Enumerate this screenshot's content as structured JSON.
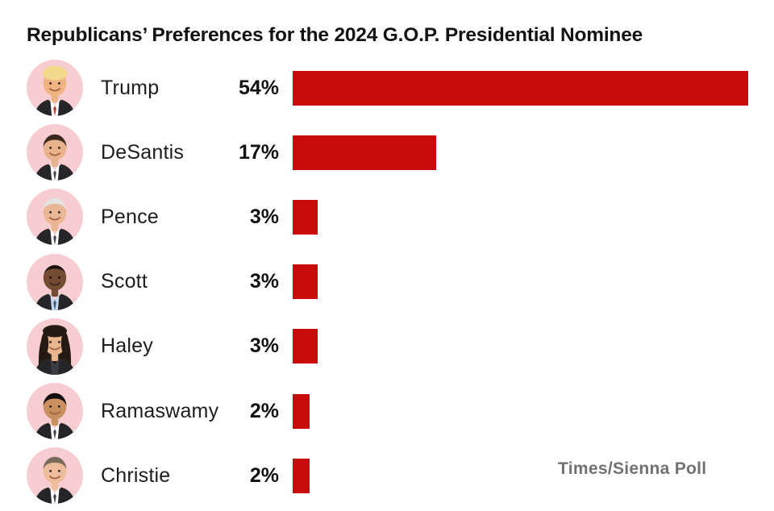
{
  "title": "Republicans’ Preferences for the 2024 G.O.P. Presidential Nominee",
  "attribution": "Times/Sienna Poll",
  "colors": {
    "background": "#ffffff",
    "bar": "#c80b0c",
    "avatar_bg": "#f7cdd1",
    "title": "#131313",
    "label": "#1d1d1d",
    "value": "#111111",
    "attribution": "#717171"
  },
  "chart_data": {
    "type": "bar",
    "orientation": "horizontal",
    "title": "Republicans’ Preferences for the 2024 G.O.P. Presidential Nominee",
    "categories": [
      "Trump",
      "DeSantis",
      "Pence",
      "Scott",
      "Haley",
      "Ramaswamy",
      "Christie"
    ],
    "values": [
      54,
      17,
      3,
      3,
      3,
      2,
      2
    ],
    "value_labels": [
      "54%",
      "17%",
      "3%",
      "3%",
      "3%",
      "2%",
      "2%"
    ],
    "unit": "%",
    "xlim": [
      0,
      54.5
    ],
    "grid": false,
    "legend": null,
    "source": "Times/Sienna Poll",
    "candidates": [
      {
        "name": "Trump",
        "avatar": {
          "icon": "trump-portrait-icon",
          "style": "swoop",
          "skin": "#f0b483",
          "hair": "#f3d98b",
          "shirt": "#ffffff",
          "suit": "#26262a",
          "tie": "#b03a36"
        }
      },
      {
        "name": "DeSantis",
        "avatar": {
          "icon": "desantis-portrait-icon",
          "style": "short",
          "skin": "#e7b38c",
          "hair": "#38281d",
          "shirt": "#ffffff",
          "suit": "#26262a",
          "tie": "#44444f"
        }
      },
      {
        "name": "Pence",
        "avatar": {
          "icon": "pence-portrait-icon",
          "style": "white",
          "skin": "#eab795",
          "hair": "#e4e4e2",
          "shirt": "#ffffff",
          "suit": "#26262a",
          "tie": "#44444f"
        }
      },
      {
        "name": "Scott",
        "avatar": {
          "icon": "scott-portrait-icon",
          "style": "bald",
          "skin": "#744c33",
          "hair": "#17110d",
          "shirt": "#c6d9ec",
          "suit": "#26262a",
          "tie": "#3e5a77"
        }
      },
      {
        "name": "Haley",
        "avatar": {
          "icon": "haley-portrait-icon",
          "style": "long",
          "skin": "#e8b68f",
          "hair": "#241a12",
          "shirt": "#3c3c44",
          "suit": "#26262a",
          "tie": ""
        }
      },
      {
        "name": "Ramaswamy",
        "avatar": {
          "icon": "ramaswamy-portrait-icon",
          "style": "short",
          "skin": "#c9905f",
          "hair": "#120d09",
          "shirt": "#ffffff",
          "suit": "#26262a",
          "tie": "#44444f"
        }
      },
      {
        "name": "Christie",
        "avatar": {
          "icon": "christie-portrait-icon",
          "style": "part",
          "skin": "#edbd9c",
          "hair": "#7a6a58",
          "shirt": "#ffffff",
          "suit": "#26262a",
          "tie": "#44444f"
        }
      }
    ]
  }
}
